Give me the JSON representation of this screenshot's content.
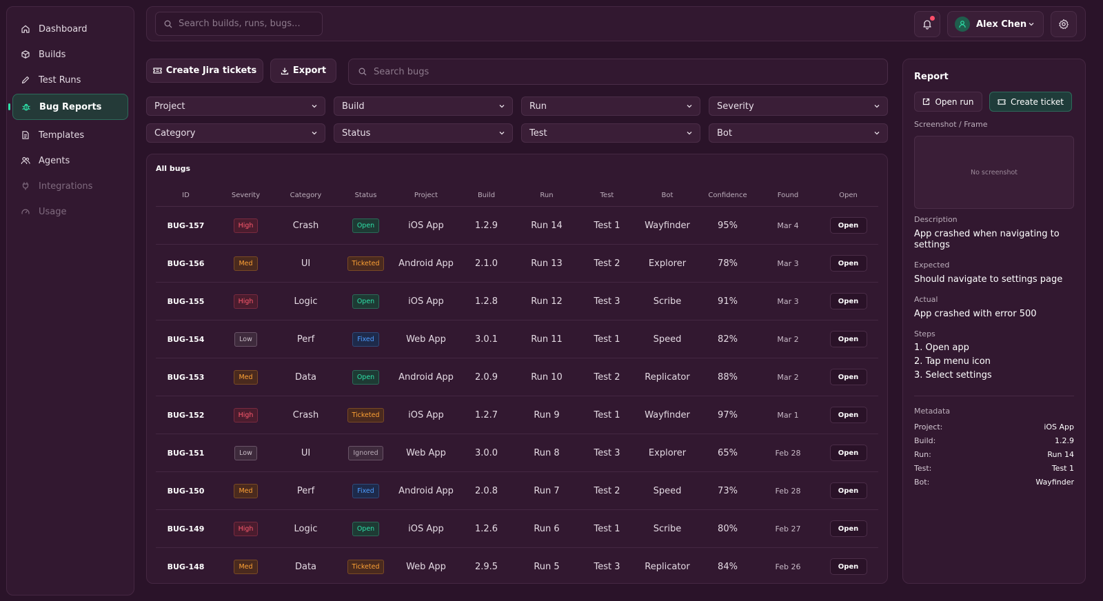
{
  "sidebar": {
    "items": [
      {
        "label": "Dashboard",
        "icon": "home-icon",
        "state": "normal"
      },
      {
        "label": "Builds",
        "icon": "box-icon",
        "state": "normal"
      },
      {
        "label": "Test Runs",
        "icon": "pen-icon",
        "state": "normal"
      },
      {
        "label": "Bug Reports",
        "icon": "bug-icon",
        "state": "active"
      },
      {
        "label": "Templates",
        "icon": "document-icon",
        "state": "normal"
      },
      {
        "label": "Agents",
        "icon": "users-icon",
        "state": "normal"
      },
      {
        "label": "Integrations",
        "icon": "plug-icon",
        "state": "disabled"
      },
      {
        "label": "Usage",
        "icon": "gauge-icon",
        "state": "disabled"
      }
    ]
  },
  "header": {
    "search_placeholder": "Search builds, runs, bugs...",
    "user_name": "Alex Chen",
    "notification_dot": true
  },
  "toolbar": {
    "create_jira_label": "Create Jira tickets",
    "export_label": "Export",
    "bug_search_placeholder": "Search bugs"
  },
  "filters": [
    "Project",
    "Build",
    "Run",
    "Severity",
    "Category",
    "Status",
    "Test",
    "Bot"
  ],
  "table": {
    "title": "All bugs",
    "columns": [
      "ID",
      "Severity",
      "Category",
      "Status",
      "Project",
      "Build",
      "Run",
      "Test",
      "Bot",
      "Confidence",
      "Found",
      "Open"
    ],
    "rows": [
      {
        "id": "BUG-157",
        "severity": "High",
        "category": "Crash",
        "status": "Open",
        "project": "iOS App",
        "build": "1.2.9",
        "run": "Run 14",
        "test": "Test 1",
        "bot": "Wayfinder",
        "confidence": "95%",
        "found": "Mar 4",
        "open": "Open"
      },
      {
        "id": "BUG-156",
        "severity": "Med",
        "category": "UI",
        "status": "Ticketed",
        "project": "Android App",
        "build": "2.1.0",
        "run": "Run 13",
        "test": "Test 2",
        "bot": "Explorer",
        "confidence": "78%",
        "found": "Mar 3",
        "open": "Open"
      },
      {
        "id": "BUG-155",
        "severity": "High",
        "category": "Logic",
        "status": "Open",
        "project": "iOS App",
        "build": "1.2.8",
        "run": "Run 12",
        "test": "Test 3",
        "bot": "Scribe",
        "confidence": "91%",
        "found": "Mar 3",
        "open": "Open"
      },
      {
        "id": "BUG-154",
        "severity": "Low",
        "category": "Perf",
        "status": "Fixed",
        "project": "Web App",
        "build": "3.0.1",
        "run": "Run 11",
        "test": "Test 1",
        "bot": "Speed",
        "confidence": "82%",
        "found": "Mar 2",
        "open": "Open"
      },
      {
        "id": "BUG-153",
        "severity": "Med",
        "category": "Data",
        "status": "Open",
        "project": "Android App",
        "build": "2.0.9",
        "run": "Run 10",
        "test": "Test 2",
        "bot": "Replicator",
        "confidence": "88%",
        "found": "Mar 2",
        "open": "Open"
      },
      {
        "id": "BUG-152",
        "severity": "High",
        "category": "Crash",
        "status": "Ticketed",
        "project": "iOS App",
        "build": "1.2.7",
        "run": "Run 9",
        "test": "Test 1",
        "bot": "Wayfinder",
        "confidence": "97%",
        "found": "Mar 1",
        "open": "Open"
      },
      {
        "id": "BUG-151",
        "severity": "Low",
        "category": "UI",
        "status": "Ignored",
        "project": "Web App",
        "build": "3.0.0",
        "run": "Run 8",
        "test": "Test 3",
        "bot": "Explorer",
        "confidence": "65%",
        "found": "Feb 28",
        "open": "Open"
      },
      {
        "id": "BUG-150",
        "severity": "Med",
        "category": "Perf",
        "status": "Fixed",
        "project": "Android App",
        "build": "2.0.8",
        "run": "Run 7",
        "test": "Test 2",
        "bot": "Speed",
        "confidence": "73%",
        "found": "Feb 28",
        "open": "Open"
      },
      {
        "id": "BUG-149",
        "severity": "High",
        "category": "Logic",
        "status": "Open",
        "project": "iOS App",
        "build": "1.2.6",
        "run": "Run 6",
        "test": "Test 1",
        "bot": "Scribe",
        "confidence": "80%",
        "found": "Feb 27",
        "open": "Open"
      },
      {
        "id": "BUG-148",
        "severity": "Med",
        "category": "Data",
        "status": "Ticketed",
        "project": "Web App",
        "build": "2.9.5",
        "run": "Run 5",
        "test": "Test 3",
        "bot": "Replicator",
        "confidence": "84%",
        "found": "Feb 26",
        "open": "Open"
      }
    ]
  },
  "report": {
    "title": "Report",
    "open_run_label": "Open run",
    "create_ticket_label": "Create ticket",
    "screenshot_label": "Screenshot / Frame",
    "no_screenshot": "No screenshot",
    "description_label": "Description",
    "description": "App crashed when navigating to settings",
    "expected_label": "Expected",
    "expected": "Should navigate to settings page",
    "actual_label": "Actual",
    "actual": "App crashed with error 500",
    "steps_label": "Steps",
    "steps": [
      "1. Open app",
      "2. Tap menu icon",
      "3. Select settings"
    ],
    "metadata_label": "Metadata",
    "metadata": [
      {
        "key": "Project:",
        "value": "iOS App"
      },
      {
        "key": "Build:",
        "value": "1.2.9"
      },
      {
        "key": "Run:",
        "value": "Run 14"
      },
      {
        "key": "Test:",
        "value": "Test 1"
      },
      {
        "key": "Bot:",
        "value": "Wayfinder"
      }
    ]
  },
  "colors": {
    "background": "#2a1329",
    "panel": "#321830",
    "accent_green": "#2ee0a8",
    "high": "#ff5a6e",
    "med": "#ffa235",
    "fixed": "#4e9cff"
  }
}
